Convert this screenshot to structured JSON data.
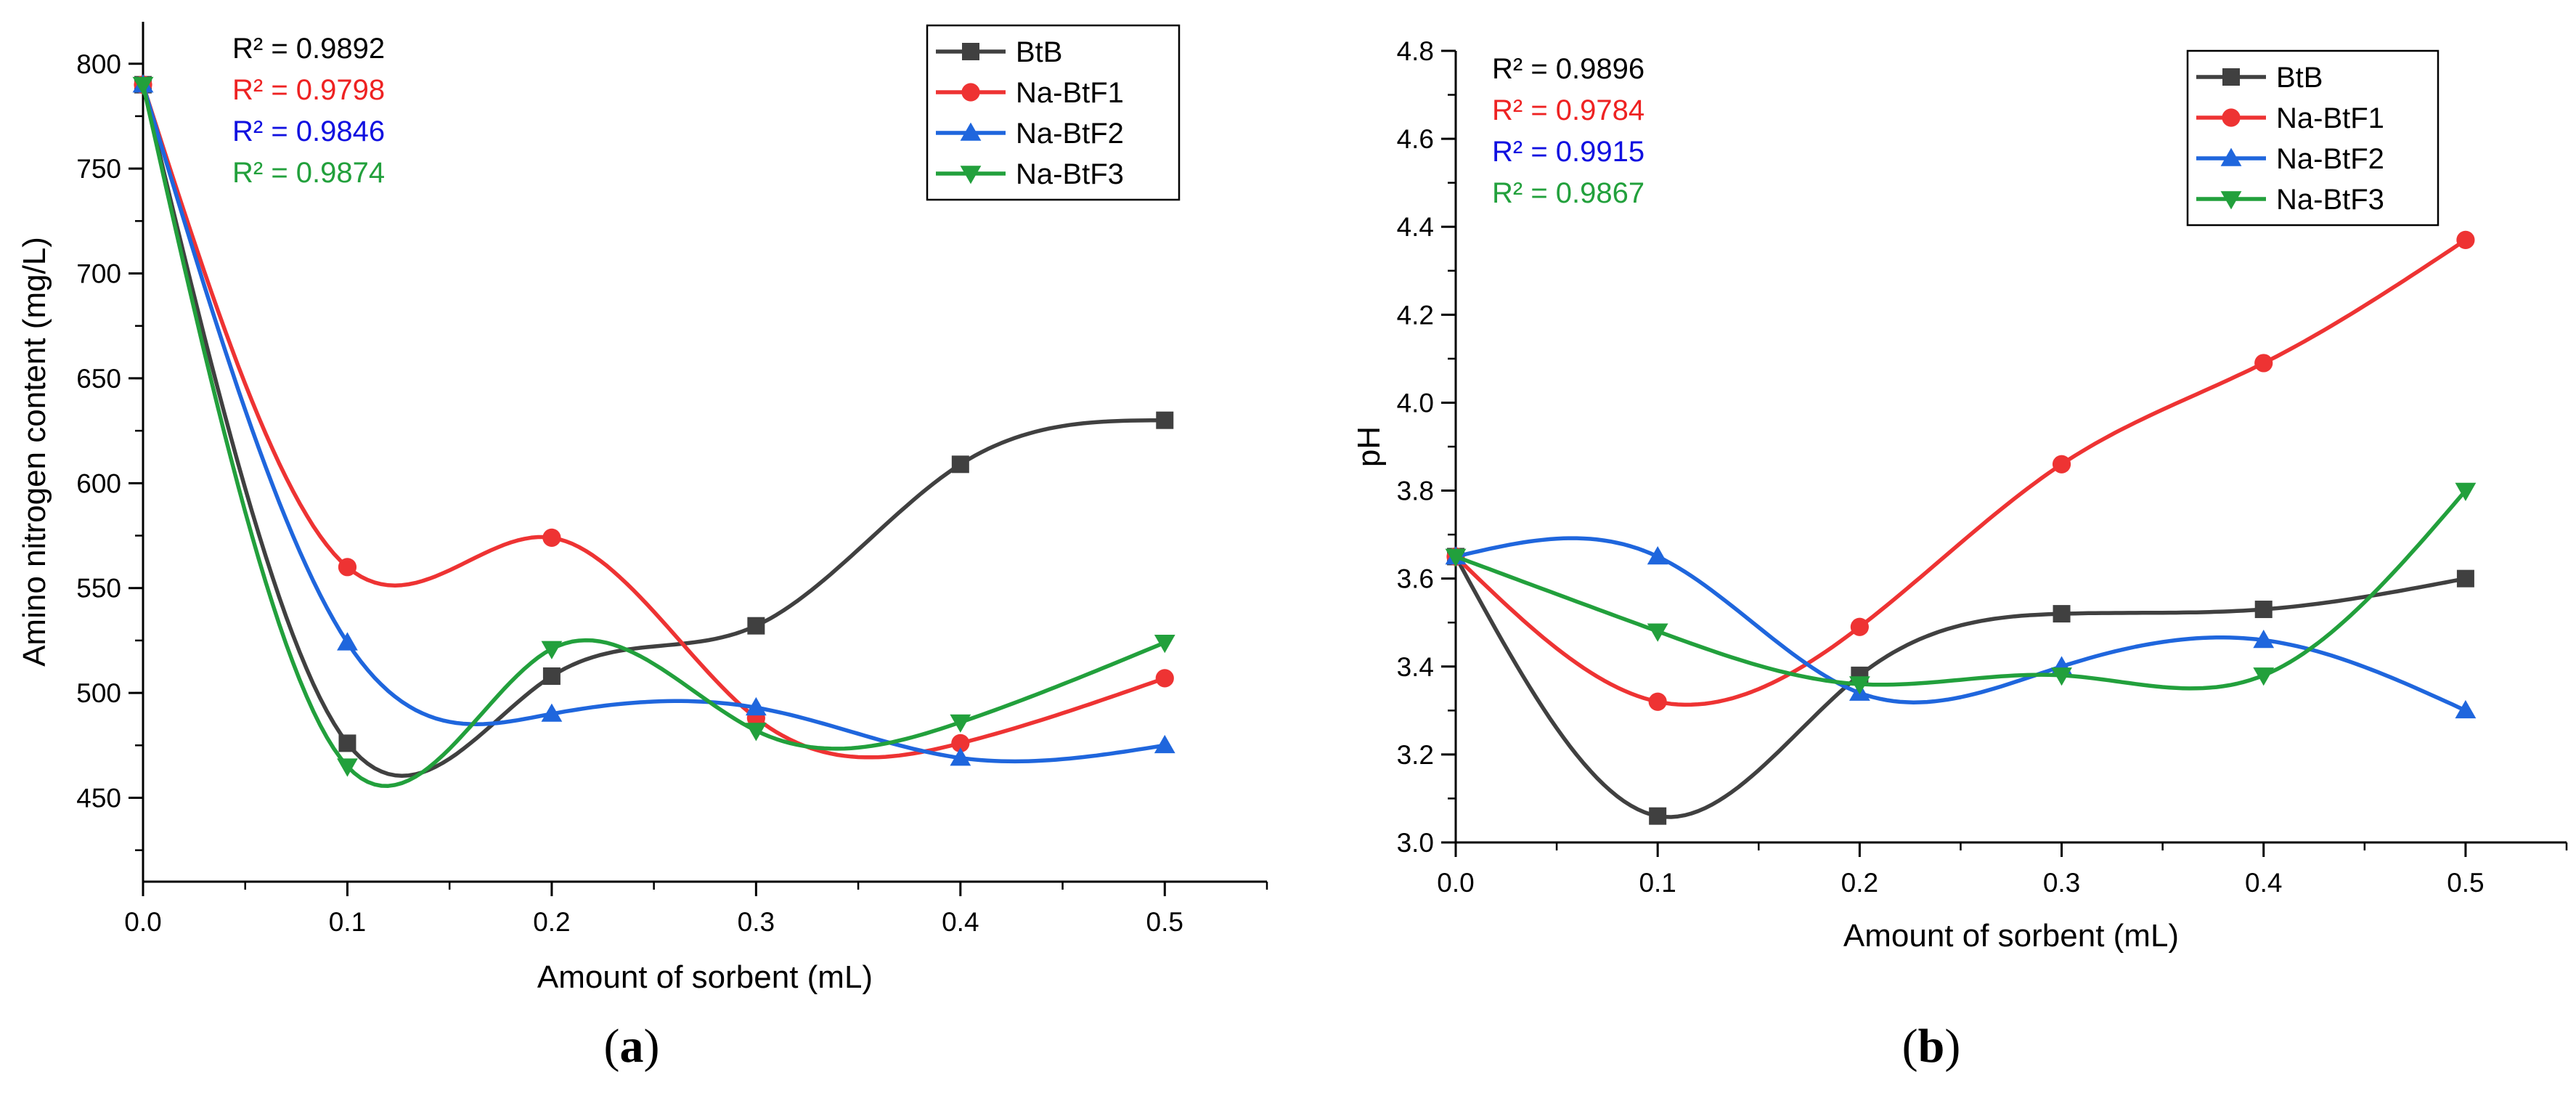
{
  "chart_data": [
    {
      "type": "line",
      "panel_label": "a",
      "xlabel": "Amount of sorbent (mL)",
      "ylabel": "Amino nitrogen content (mg/L)",
      "xlim": [
        0,
        0.55
      ],
      "ylim": [
        410,
        820
      ],
      "xticks": [
        "0.0",
        "0.1",
        "0.2",
        "0.3",
        "0.4",
        "0.5"
      ],
      "xtick_values": [
        0,
        0.1,
        0.2,
        0.3,
        0.4,
        0.5
      ],
      "yticks": [
        "450",
        "500",
        "550",
        "600",
        "650",
        "700",
        "750",
        "800"
      ],
      "ytick_values": [
        450,
        500,
        550,
        600,
        650,
        700,
        750,
        800
      ],
      "grid": false,
      "legend_position": "top-right",
      "x": [
        0,
        0.1,
        0.2,
        0.3,
        0.4,
        0.5
      ],
      "series": [
        {
          "name": "BtB",
          "values": [
            790,
            476,
            508,
            532,
            609,
            630
          ],
          "color": "#404040",
          "marker": "square"
        },
        {
          "name": "Na-BtF1",
          "values": [
            790,
            560,
            574,
            488,
            476,
            507
          ],
          "color": "#ee3333",
          "marker": "circle"
        },
        {
          "name": "Na-BtF2",
          "values": [
            790,
            524,
            490,
            493,
            469,
            475
          ],
          "color": "#1f66dd",
          "marker": "triangle-up"
        },
        {
          "name": "Na-BtF3",
          "values": [
            790,
            465,
            521,
            482,
            486,
            524
          ],
          "color": "#22a03c",
          "marker": "triangle-down"
        }
      ],
      "annotations": [
        {
          "text": "R² = 0.9892",
          "color": "#000000"
        },
        {
          "text": "R² = 0.9798",
          "color": "#ee2222"
        },
        {
          "text": "R² = 0.9846",
          "color": "#1010e0"
        },
        {
          "text": "R² = 0.9874",
          "color": "#22a03c"
        }
      ]
    },
    {
      "type": "line",
      "panel_label": "b",
      "xlabel": "Amount of sorbent (mL)",
      "ylabel": "pH",
      "xlim": [
        0,
        0.55
      ],
      "ylim": [
        3.0,
        4.8
      ],
      "xticks": [
        "0.0",
        "0.1",
        "0.2",
        "0.3",
        "0.4",
        "0.5"
      ],
      "xtick_values": [
        0,
        0.1,
        0.2,
        0.3,
        0.4,
        0.5
      ],
      "yticks": [
        "3.0",
        "3.2",
        "3.4",
        "3.6",
        "3.8",
        "4.0",
        "4.2",
        "4.4",
        "4.6",
        "4.8"
      ],
      "ytick_values": [
        3.0,
        3.2,
        3.4,
        3.6,
        3.8,
        4.0,
        4.2,
        4.4,
        4.6,
        4.8
      ],
      "grid": false,
      "legend_position": "top-right",
      "x": [
        0,
        0.1,
        0.2,
        0.3,
        0.4,
        0.5
      ],
      "series": [
        {
          "name": "BtB",
          "values": [
            3.65,
            3.06,
            3.38,
            3.52,
            3.53,
            3.6
          ],
          "color": "#404040",
          "marker": "square"
        },
        {
          "name": "Na-BtF1",
          "values": [
            3.65,
            3.32,
            3.49,
            3.86,
            4.09,
            4.37
          ],
          "color": "#ee3333",
          "marker": "circle"
        },
        {
          "name": "Na-BtF2",
          "values": [
            3.65,
            3.65,
            3.34,
            3.4,
            3.46,
            3.3
          ],
          "color": "#1f66dd",
          "marker": "triangle-up"
        },
        {
          "name": "Na-BtF3",
          "values": [
            3.65,
            3.48,
            3.36,
            3.38,
            3.38,
            3.8
          ],
          "color": "#22a03c",
          "marker": "triangle-down"
        }
      ],
      "annotations": [
        {
          "text": "R² = 0.9896",
          "color": "#000000"
        },
        {
          "text": "R² = 0.9784",
          "color": "#ee2222"
        },
        {
          "text": "R² = 0.9915",
          "color": "#1010e0"
        },
        {
          "text": "R² = 0.9867",
          "color": "#22a03c"
        }
      ]
    }
  ]
}
